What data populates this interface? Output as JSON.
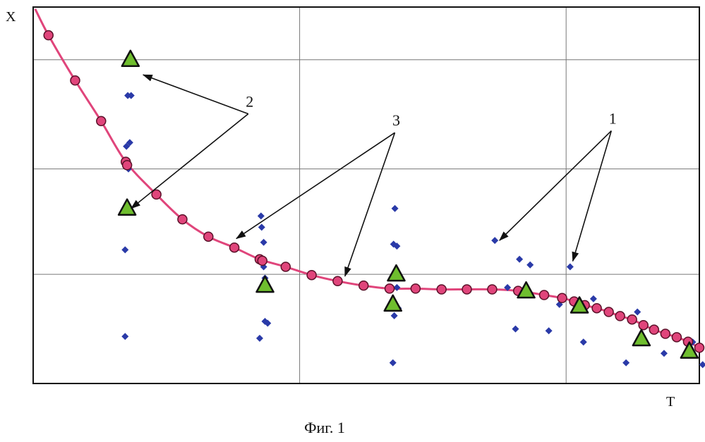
{
  "caption": "Фиг. 1",
  "chart_data": {
    "type": "scatter",
    "title": "",
    "xlabel": "T",
    "ylabel": "X",
    "xlim": [
      0,
      100
    ],
    "ylim": [
      0,
      100
    ],
    "grid": true,
    "grid_x": [
      40,
      80
    ],
    "grid_y": [
      29,
      57,
      86
    ],
    "colors": {
      "curve": "#e0457b",
      "circle_fill": "#e0457b",
      "circle_stroke": "#5a1028",
      "diamond": "#2a3aa8",
      "triangle_fill": "#6fbe2e",
      "triangle_stroke": "#111111"
    },
    "series": [
      {
        "kind": "curve",
        "values": [
          {
            "x": 0.3,
            "y": 99.5
          },
          {
            "x": 2.3,
            "y": 92.5
          },
          {
            "x": 6.3,
            "y": 80.5
          },
          {
            "x": 10.2,
            "y": 69.7
          },
          {
            "x": 13.9,
            "y": 58.9
          },
          {
            "x": 18.5,
            "y": 50.2
          },
          {
            "x": 22.4,
            "y": 43.6
          },
          {
            "x": 26.3,
            "y": 39.0
          },
          {
            "x": 30.2,
            "y": 36.1
          },
          {
            "x": 34.0,
            "y": 33.0
          },
          {
            "x": 37.9,
            "y": 31.0
          },
          {
            "x": 41.8,
            "y": 28.8
          },
          {
            "x": 45.7,
            "y": 27.2
          },
          {
            "x": 49.6,
            "y": 26.0
          },
          {
            "x": 53.5,
            "y": 25.2
          },
          {
            "x": 57.4,
            "y": 25.2
          },
          {
            "x": 61.3,
            "y": 25.0
          },
          {
            "x": 65.1,
            "y": 25.0
          },
          {
            "x": 68.9,
            "y": 25.0
          },
          {
            "x": 72.8,
            "y": 24.6
          },
          {
            "x": 76.7,
            "y": 23.5
          },
          {
            "x": 79.4,
            "y": 22.7
          },
          {
            "x": 81.2,
            "y": 21.8
          },
          {
            "x": 82.8,
            "y": 20.8
          },
          {
            "x": 84.6,
            "y": 20.0
          },
          {
            "x": 86.4,
            "y": 19.0
          },
          {
            "x": 88.1,
            "y": 17.9
          },
          {
            "x": 89.9,
            "y": 17.0
          },
          {
            "x": 91.6,
            "y": 15.5
          },
          {
            "x": 93.2,
            "y": 14.3
          },
          {
            "x": 94.9,
            "y": 13.2
          },
          {
            "x": 96.6,
            "y": 12.3
          },
          {
            "x": 98.3,
            "y": 11.1
          },
          {
            "x": 100.0,
            "y": 9.5
          }
        ]
      },
      {
        "kind": "circle",
        "values": [
          {
            "x": 2.3,
            "y": 92.5
          },
          {
            "x": 6.3,
            "y": 80.5
          },
          {
            "x": 10.2,
            "y": 69.7
          },
          {
            "x": 13.9,
            "y": 58.9
          },
          {
            "x": 14.1,
            "y": 58.0
          },
          {
            "x": 18.5,
            "y": 50.2
          },
          {
            "x": 22.4,
            "y": 43.6
          },
          {
            "x": 26.3,
            "y": 39.0
          },
          {
            "x": 30.2,
            "y": 36.1
          },
          {
            "x": 34.0,
            "y": 33.0
          },
          {
            "x": 34.4,
            "y": 32.6
          },
          {
            "x": 37.9,
            "y": 31.0
          },
          {
            "x": 41.8,
            "y": 28.8
          },
          {
            "x": 45.7,
            "y": 27.2
          },
          {
            "x": 49.6,
            "y": 26.0
          },
          {
            "x": 53.5,
            "y": 25.2
          },
          {
            "x": 57.4,
            "y": 25.2
          },
          {
            "x": 61.3,
            "y": 25.0
          },
          {
            "x": 65.1,
            "y": 25.0
          },
          {
            "x": 68.9,
            "y": 25.0
          },
          {
            "x": 72.8,
            "y": 24.6
          },
          {
            "x": 76.7,
            "y": 23.5
          },
          {
            "x": 79.4,
            "y": 22.7
          },
          {
            "x": 81.2,
            "y": 21.8
          },
          {
            "x": 82.8,
            "y": 20.8
          },
          {
            "x": 84.6,
            "y": 20.0
          },
          {
            "x": 86.4,
            "y": 19.0
          },
          {
            "x": 88.1,
            "y": 17.9
          },
          {
            "x": 89.9,
            "y": 17.0
          },
          {
            "x": 91.6,
            "y": 15.5
          },
          {
            "x": 93.2,
            "y": 14.3
          },
          {
            "x": 94.9,
            "y": 13.2
          },
          {
            "x": 96.6,
            "y": 12.3
          },
          {
            "x": 98.3,
            "y": 11.1
          },
          {
            "x": 100.0,
            "y": 9.5
          }
        ]
      },
      {
        "kind": "diamond",
        "values": [
          {
            "x": 14.6,
            "y": 87.0
          },
          {
            "x": 14.2,
            "y": 76.5
          },
          {
            "x": 14.7,
            "y": 76.5
          },
          {
            "x": 14.0,
            "y": 63.0
          },
          {
            "x": 14.5,
            "y": 64.0
          },
          {
            "x": 14.3,
            "y": 57.0
          },
          {
            "x": 13.8,
            "y": 35.5
          },
          {
            "x": 13.8,
            "y": 12.5
          },
          {
            "x": 34.2,
            "y": 44.5
          },
          {
            "x": 34.3,
            "y": 41.5
          },
          {
            "x": 34.6,
            "y": 37.5
          },
          {
            "x": 34.6,
            "y": 31.0
          },
          {
            "x": 34.8,
            "y": 28.0
          },
          {
            "x": 34.8,
            "y": 16.5
          },
          {
            "x": 35.2,
            "y": 16.0
          },
          {
            "x": 34.0,
            "y": 12.0
          },
          {
            "x": 54.3,
            "y": 46.5
          },
          {
            "x": 54.1,
            "y": 37.0
          },
          {
            "x": 54.6,
            "y": 36.5
          },
          {
            "x": 54.6,
            "y": 25.5
          },
          {
            "x": 54.8,
            "y": 20.0
          },
          {
            "x": 54.2,
            "y": 18.0
          },
          {
            "x": 54.0,
            "y": 5.5
          },
          {
            "x": 69.3,
            "y": 38.0
          },
          {
            "x": 73.0,
            "y": 33.0
          },
          {
            "x": 74.6,
            "y": 31.5
          },
          {
            "x": 80.6,
            "y": 31.0
          },
          {
            "x": 71.2,
            "y": 25.5
          },
          {
            "x": 79.0,
            "y": 21.0
          },
          {
            "x": 72.4,
            "y": 14.5
          },
          {
            "x": 77.4,
            "y": 14.0
          },
          {
            "x": 84.1,
            "y": 22.5
          },
          {
            "x": 90.7,
            "y": 19.0
          },
          {
            "x": 82.6,
            "y": 11.0
          },
          {
            "x": 89.0,
            "y": 5.5
          },
          {
            "x": 94.7,
            "y": 8.0
          },
          {
            "x": 99.0,
            "y": 11.0
          },
          {
            "x": 100.5,
            "y": 5.0
          }
        ]
      },
      {
        "kind": "triangle",
        "values": [
          {
            "x": 14.6,
            "y": 86.0
          },
          {
            "x": 14.1,
            "y": 46.5
          },
          {
            "x": 34.8,
            "y": 26.0
          },
          {
            "x": 54.5,
            "y": 29.0
          },
          {
            "x": 54.0,
            "y": 21.0
          },
          {
            "x": 74.0,
            "y": 24.5
          },
          {
            "x": 82.0,
            "y": 20.5
          },
          {
            "x": 91.3,
            "y": 11.8
          },
          {
            "x": 98.5,
            "y": 8.5
          }
        ]
      }
    ],
    "annotations": [
      {
        "text": "1",
        "label": {
          "x": 87.0,
          "y": 69.0
        },
        "targets": [
          {
            "x": 70.0,
            "y": 38.0
          },
          {
            "x": 81.0,
            "y": 32.5
          }
        ]
      },
      {
        "text": "2",
        "label": {
          "x": 32.5,
          "y": 73.5
        },
        "targets": [
          {
            "x": 16.5,
            "y": 82.0
          },
          {
            "x": 14.7,
            "y": 46.5
          }
        ]
      },
      {
        "text": "3",
        "label": {
          "x": 54.5,
          "y": 68.5
        },
        "targets": [
          {
            "x": 30.5,
            "y": 38.5
          },
          {
            "x": 46.8,
            "y": 28.5
          }
        ]
      }
    ]
  }
}
